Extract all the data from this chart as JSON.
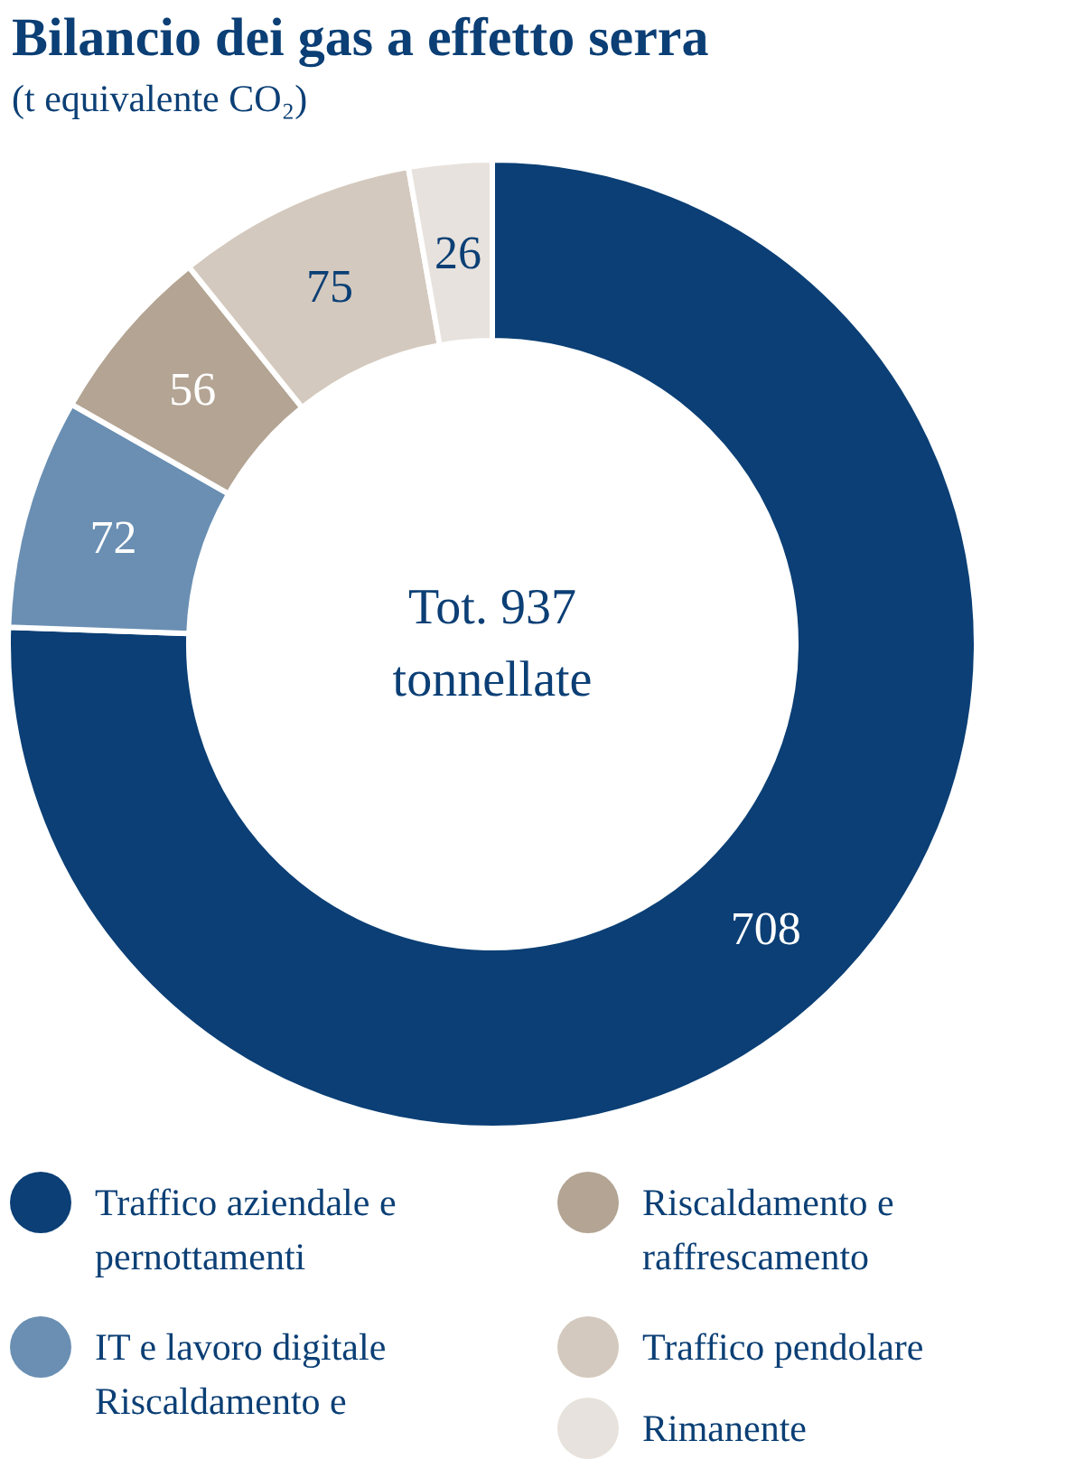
{
  "chart_data": {
    "type": "donut",
    "title": "Bilancio dei gas a effetto serra",
    "subtitle": "(t equivalente CO₂)",
    "categories": [
      "Traffico aziendale e pernottamenti",
      "IT e lavoro digitale Riscaldamento e",
      "Riscaldamento e raffrescamento",
      "Traffico pendolare",
      "Rimanente"
    ],
    "values": [
      708,
      72,
      56,
      75,
      26
    ],
    "colors": [
      "#0b3f75",
      "#6a8fb3",
      "#b3a493",
      "#d4c9be",
      "#e7e2dd"
    ],
    "data_labels": true,
    "annotations": [
      "Tot. 937 tonnellate"
    ],
    "legend": "bottom"
  }
}
